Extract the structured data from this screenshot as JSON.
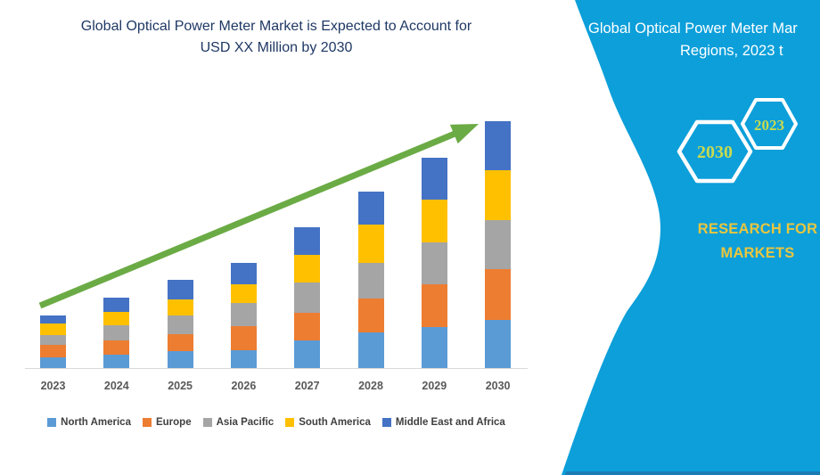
{
  "chart": {
    "title_line1": "Global Optical Power Meter Market is Expected to Account for",
    "title_line2": "USD XX Million by 2030",
    "title_color": "#1F3864"
  },
  "chart_data": {
    "type": "bar",
    "stacked": true,
    "title": "Global Optical Power Meter Market is Expected to Account for USD XX Million by 2030",
    "xlabel": "",
    "ylabel": "",
    "units": "relative market size (no y-axis ticks shown in figure)",
    "grid": false,
    "legend_position": "bottom",
    "y_axis_visible": false,
    "categories": [
      "2023",
      "2024",
      "2025",
      "2026",
      "2027",
      "2028",
      "2029",
      "2030"
    ],
    "series": [
      {
        "name": "North America",
        "color": "#5B9BD5",
        "values": [
          12,
          15,
          19,
          20,
          31,
          40,
          46,
          54
        ]
      },
      {
        "name": "Europe",
        "color": "#ED7D31",
        "values": [
          14,
          16,
          19,
          27,
          31,
          38,
          48,
          57
        ]
      },
      {
        "name": "Asia Pacific",
        "color": "#A5A5A5",
        "values": [
          11,
          17,
          21,
          26,
          34,
          40,
          47,
          55
        ]
      },
      {
        "name": "South America",
        "color": "#FFC000",
        "values": [
          13,
          15,
          18,
          21,
          31,
          43,
          48,
          56
        ]
      },
      {
        "name": "Middle East and Africa",
        "color": "#4472C4",
        "values": [
          9,
          16,
          22,
          24,
          31,
          37,
          47,
          55
        ]
      }
    ],
    "totals_by_year": [
      59,
      79,
      99,
      118,
      158,
      198,
      236,
      277
    ],
    "trend_arrow": {
      "color": "#6BAB45",
      "from_category": "2023",
      "to_category": "2030",
      "direction": "up-right"
    }
  },
  "side_panel": {
    "background_color": "#0C9FDA",
    "heading_line1": "Global Optical Power Meter Mar",
    "heading_line2": "Regions, 2023 t",
    "hexagon_large_label": "2030",
    "hexagon_small_label": "2023",
    "hexagon_label_color": "#C9DA4F",
    "brand_line1": "RESEARCH FOR",
    "brand_line2": "MARKETS",
    "brand_color": "#E9C63F"
  }
}
